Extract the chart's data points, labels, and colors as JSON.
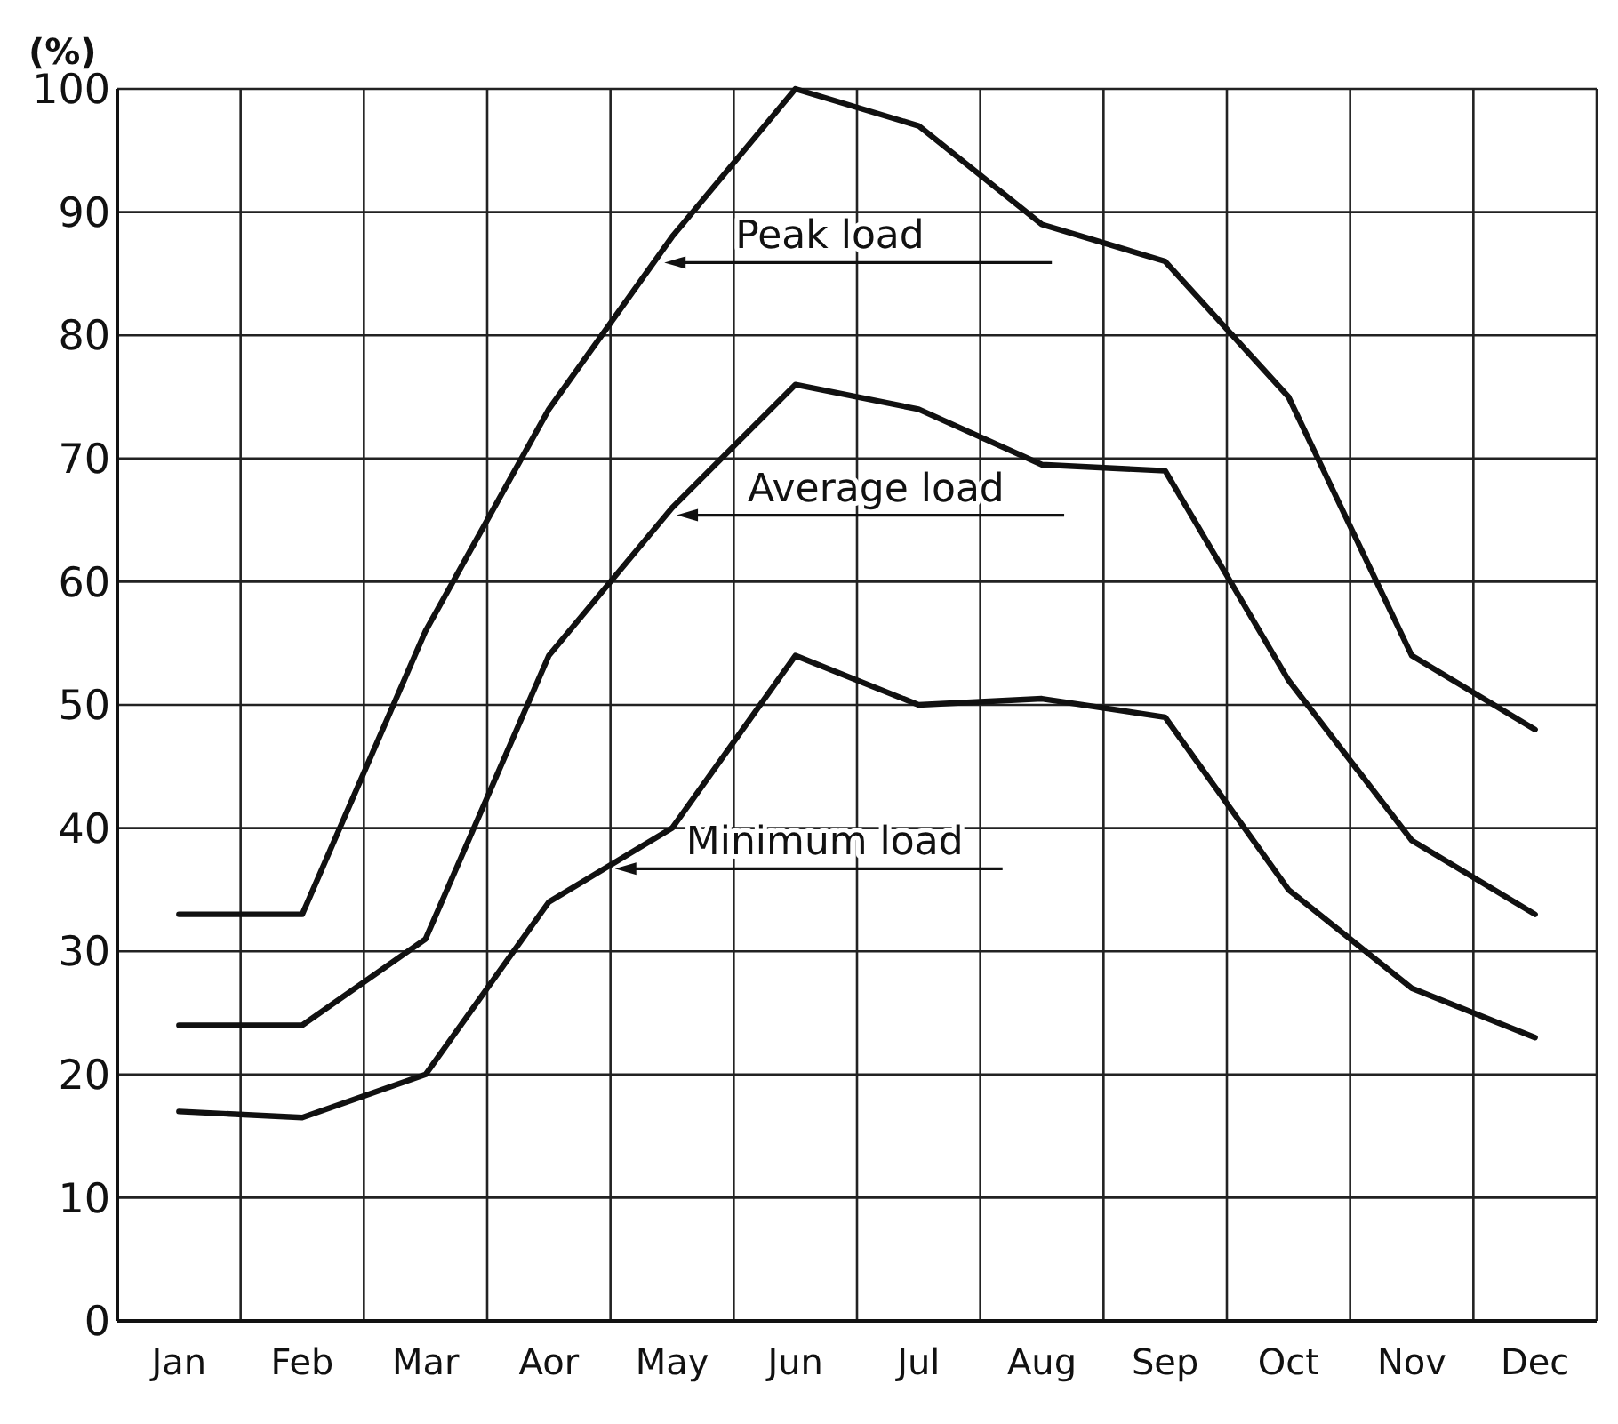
{
  "chart_data": {
    "type": "line",
    "ylabel": "(%)",
    "categories": [
      "Jan",
      "Feb",
      "Mar",
      "Aor",
      "May",
      "Jun",
      "Jul",
      "Aug",
      "Sep",
      "Oct",
      "Nov",
      "Dec"
    ],
    "series": [
      {
        "name": "Peak load",
        "color": "#111111",
        "values": [
          33,
          33,
          56,
          74,
          88,
          100,
          97,
          89,
          86,
          75,
          54,
          48
        ]
      },
      {
        "name": "Average load",
        "color": "#111111",
        "values": [
          24,
          24,
          31,
          54,
          66,
          76,
          74,
          69.5,
          69,
          52,
          39,
          33
        ]
      },
      {
        "name": "Minimum load",
        "color": "#111111",
        "values": [
          17,
          16.5,
          20,
          34,
          40,
          54,
          50,
          50.5,
          49,
          35,
          27,
          23
        ]
      }
    ],
    "ylim": [
      0,
      100
    ],
    "yticks": [
      0,
      10,
      20,
      30,
      40,
      50,
      60,
      70,
      80,
      90,
      100
    ],
    "grid": true,
    "marker": "none",
    "line_style": "solid",
    "legend": "center"
  }
}
